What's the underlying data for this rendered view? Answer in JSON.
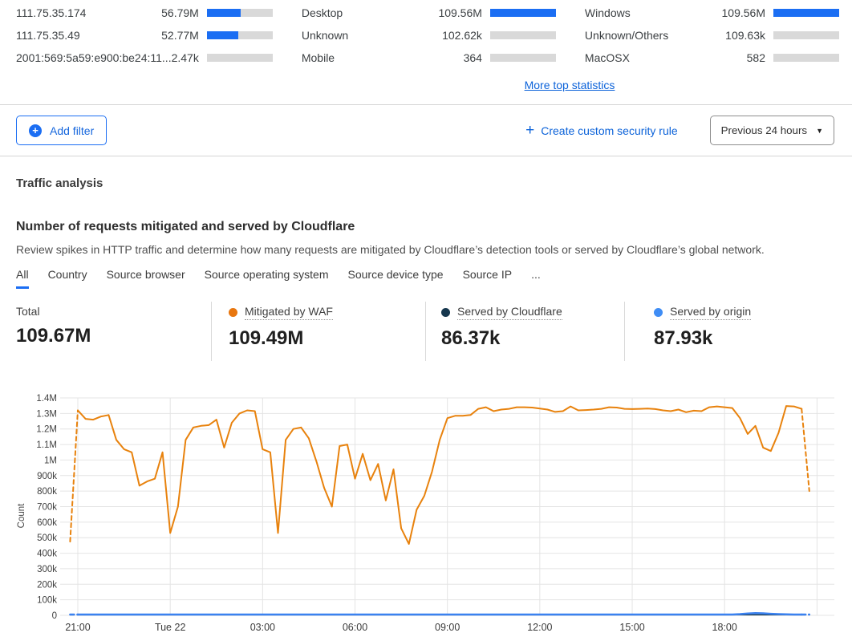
{
  "top_stats": {
    "columns": [
      {
        "id": "source-ip",
        "rows": [
          {
            "label": "111.75.35.174",
            "value": "56.79M",
            "pct": 52
          },
          {
            "label": "111.75.35.49",
            "value": "52.77M",
            "pct": 48
          },
          {
            "label": "2001:569:5a59:e900:be24:11...",
            "value": "2.47k",
            "pct": 0
          }
        ]
      },
      {
        "id": "device-type",
        "rows": [
          {
            "label": "Desktop",
            "value": "109.56M",
            "pct": 100
          },
          {
            "label": "Unknown",
            "value": "102.62k",
            "pct": 0
          },
          {
            "label": "Mobile",
            "value": "364",
            "pct": 0
          }
        ]
      },
      {
        "id": "operating-system",
        "rows": [
          {
            "label": "Windows",
            "value": "109.56M",
            "pct": 100
          },
          {
            "label": "Unknown/Others",
            "value": "109.63k",
            "pct": 0
          },
          {
            "label": "MacOSX",
            "value": "582",
            "pct": 0
          }
        ]
      }
    ],
    "more_link": "More top statistics"
  },
  "filter_bar": {
    "add_filter_label": "Add filter",
    "create_rule_label": "Create custom security rule",
    "create_rule_plus": "+",
    "time_range_value": "Previous 24 hours"
  },
  "section": {
    "title": "Traffic analysis",
    "subtitle": "Number of requests mitigated and served by Cloudflare",
    "description": "Review spikes in HTTP traffic and determine how many requests are mitigated by Cloudflare’s detection tools or served by Cloudflare’s global network."
  },
  "tabs": [
    {
      "label": "All",
      "active": true
    },
    {
      "label": "Country",
      "active": false
    },
    {
      "label": "Source browser",
      "active": false
    },
    {
      "label": "Source operating system",
      "active": false
    },
    {
      "label": "Source device type",
      "active": false
    },
    {
      "label": "Source IP",
      "active": false
    },
    {
      "label": "...",
      "active": false
    }
  ],
  "summary": [
    {
      "label": "Total",
      "value": "109.67M",
      "dot": null
    },
    {
      "label": "Mitigated by WAF",
      "value": "109.49M",
      "dot": "#e8760e"
    },
    {
      "label": "Served by Cloudflare",
      "value": "86.37k",
      "dot": "#16374e"
    },
    {
      "label": "Served by origin",
      "value": "87.93k",
      "dot": "#3f8df5"
    }
  ],
  "chart_data": {
    "type": "line",
    "title": "",
    "xlabel": "",
    "ylabel": "Count",
    "ylim": [
      0,
      1400000
    ],
    "grid": true,
    "legend_position": "none",
    "interval_minutes": 15,
    "start_time": "20:45",
    "note": "first and last segments are dashed (partial buckets); values_k are in thousands of requests per 15-min bucket",
    "y_tick_labels": [
      "0",
      "100k",
      "200k",
      "300k",
      "400k",
      "500k",
      "600k",
      "700k",
      "800k",
      "900k",
      "1M",
      "1.1M",
      "1.2M",
      "1.3M",
      "1.4M"
    ],
    "x_ticks": [
      {
        "label": "21:00",
        "index": 1
      },
      {
        "label": "Tue 22",
        "index": 13
      },
      {
        "label": "03:00",
        "index": 25
      },
      {
        "label": "06:00",
        "index": 37
      },
      {
        "label": "09:00",
        "index": 49
      },
      {
        "label": "12:00",
        "index": 61
      },
      {
        "label": "15:00",
        "index": 73
      },
      {
        "label": "18:00",
        "index": 85
      }
    ],
    "x_gridline_indices": [
      1,
      13,
      25,
      37,
      49,
      61,
      73,
      85,
      97
    ],
    "series": [
      {
        "name": "Mitigated by WAF",
        "color": "#e8820d",
        "width": 2,
        "values_k": [
          475,
          1320,
          1265,
          1260,
          1280,
          1290,
          1130,
          1070,
          1050,
          835,
          862,
          880,
          1050,
          530,
          700,
          1130,
          1210,
          1220,
          1225,
          1260,
          1080,
          1240,
          1300,
          1320,
          1315,
          1070,
          1050,
          530,
          1130,
          1200,
          1210,
          1140,
          990,
          820,
          700,
          1090,
          1100,
          880,
          1040,
          870,
          975,
          740,
          940,
          560,
          460,
          680,
          770,
          925,
          1130,
          1270,
          1285,
          1285,
          1290,
          1330,
          1340,
          1315,
          1325,
          1330,
          1340,
          1340,
          1338,
          1332,
          1325,
          1310,
          1315,
          1345,
          1320,
          1322,
          1325,
          1330,
          1340,
          1338,
          1330,
          1328,
          1330,
          1332,
          1328,
          1320,
          1315,
          1325,
          1308,
          1318,
          1315,
          1340,
          1345,
          1340,
          1335,
          1270,
          1168,
          1220,
          1080,
          1058,
          1175,
          1348,
          1345,
          1330,
          800
        ]
      },
      {
        "name": "Served by origin",
        "color": "#3b82f0",
        "width": 2.5,
        "values_k": [
          5,
          5,
          5,
          5,
          5,
          5,
          5,
          5,
          5,
          5,
          5,
          5,
          5,
          5,
          5,
          5,
          5,
          5,
          5,
          5,
          5,
          5,
          5,
          5,
          5,
          5,
          5,
          5,
          5,
          5,
          5,
          5,
          5,
          5,
          5,
          5,
          5,
          5,
          5,
          5,
          5,
          5,
          5,
          5,
          5,
          5,
          5,
          5,
          5,
          5,
          5,
          5,
          5,
          5,
          5,
          5,
          5,
          5,
          5,
          5,
          5,
          5,
          5,
          5,
          5,
          5,
          5,
          5,
          5,
          5,
          5,
          5,
          5,
          5,
          5,
          5,
          5,
          5,
          5,
          5,
          5,
          5,
          5,
          5,
          5,
          5,
          5,
          8,
          12,
          14,
          13,
          10,
          8,
          6,
          5,
          5,
          5
        ]
      },
      {
        "name": "Served by Cloudflare",
        "color": "#16374e",
        "width": 1.5,
        "values_k": [
          3,
          3,
          3,
          3,
          3,
          3,
          3,
          3,
          3,
          3,
          3,
          3,
          3,
          3,
          3,
          3,
          3,
          3,
          3,
          3,
          3,
          3,
          3,
          3,
          3,
          3,
          3,
          3,
          3,
          3,
          3,
          3,
          3,
          3,
          3,
          3,
          3,
          3,
          3,
          3,
          3,
          3,
          3,
          3,
          3,
          3,
          3,
          3,
          3,
          3,
          3,
          3,
          3,
          3,
          3,
          3,
          3,
          3,
          3,
          3,
          3,
          3,
          3,
          3,
          3,
          3,
          3,
          3,
          3,
          3,
          3,
          3,
          3,
          3,
          3,
          3,
          3,
          3,
          3,
          3,
          3,
          3,
          3,
          3,
          3,
          3,
          3,
          3,
          3,
          3,
          3,
          3,
          3,
          3,
          3,
          3,
          3
        ]
      }
    ]
  }
}
